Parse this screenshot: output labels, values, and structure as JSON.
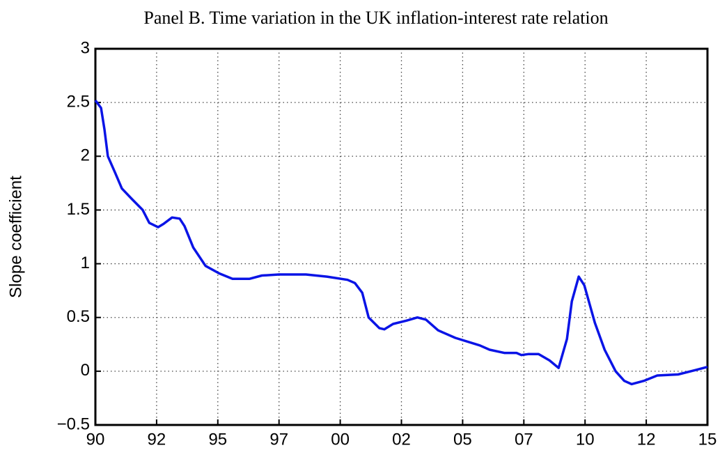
{
  "chart_data": {
    "type": "line",
    "title": "Panel B. Time variation in the UK inflation-interest rate relation",
    "y_label": "Slope coefficient",
    "color": "#0a14e6",
    "grid": true,
    "x": [
      1990.0,
      1990.23,
      1990.37,
      1990.51,
      1990.8,
      1991.08,
      1991.5,
      1991.93,
      1992.2,
      1992.56,
      1992.78,
      1993.13,
      1993.44,
      1993.64,
      1994.0,
      1994.5,
      1995.06,
      1995.6,
      1996.3,
      1996.8,
      1997.5,
      1998.6,
      1999.46,
      2000.3,
      2000.6,
      2000.9,
      2001.16,
      2001.6,
      2001.8,
      2002.16,
      2002.7,
      2003.15,
      2003.5,
      2004.0,
      2004.7,
      2005.7,
      2006.1,
      2006.7,
      2007.2,
      2007.4,
      2007.7,
      2008.1,
      2008.55,
      2008.92,
      2009.26,
      2009.46,
      2009.74,
      2009.97,
      2010.4,
      2010.8,
      2011.25,
      2011.6,
      2011.9,
      2012.4,
      2012.95,
      2013.8,
      2014.5,
      2015.0
    ],
    "values": [
      2.52,
      2.45,
      2.25,
      2.0,
      1.85,
      1.7,
      1.6,
      1.5,
      1.38,
      1.34,
      1.37,
      1.43,
      1.42,
      1.35,
      1.15,
      0.98,
      0.91,
      0.86,
      0.86,
      0.89,
      0.9,
      0.9,
      0.88,
      0.85,
      0.82,
      0.73,
      0.5,
      0.4,
      0.39,
      0.44,
      0.47,
      0.5,
      0.48,
      0.38,
      0.31,
      0.24,
      0.2,
      0.17,
      0.17,
      0.15,
      0.16,
      0.16,
      0.1,
      0.03,
      0.3,
      0.65,
      0.88,
      0.8,
      0.45,
      0.2,
      0.0,
      -0.09,
      -0.12,
      -0.09,
      -0.04,
      -0.03,
      0.01,
      0.04
    ],
    "xlim": [
      1990,
      2015
    ],
    "xticks": [
      {
        "value": 1990,
        "label": "90"
      },
      {
        "value": 1992.5,
        "label": "92"
      },
      {
        "value": 1995,
        "label": "95"
      },
      {
        "value": 1997.5,
        "label": "97"
      },
      {
        "value": 2000,
        "label": "00"
      },
      {
        "value": 2002.5,
        "label": "02"
      },
      {
        "value": 2005,
        "label": "05"
      },
      {
        "value": 2007.5,
        "label": "07"
      },
      {
        "value": 2010,
        "label": "10"
      },
      {
        "value": 2012.5,
        "label": "12"
      },
      {
        "value": 2015,
        "label": "15"
      }
    ],
    "ylim": [
      -0.5,
      3
    ],
    "yticks": [
      {
        "value": -0.5,
        "label": "−0.5"
      },
      0,
      0.5,
      1,
      1.5,
      2,
      2.5,
      3
    ]
  }
}
